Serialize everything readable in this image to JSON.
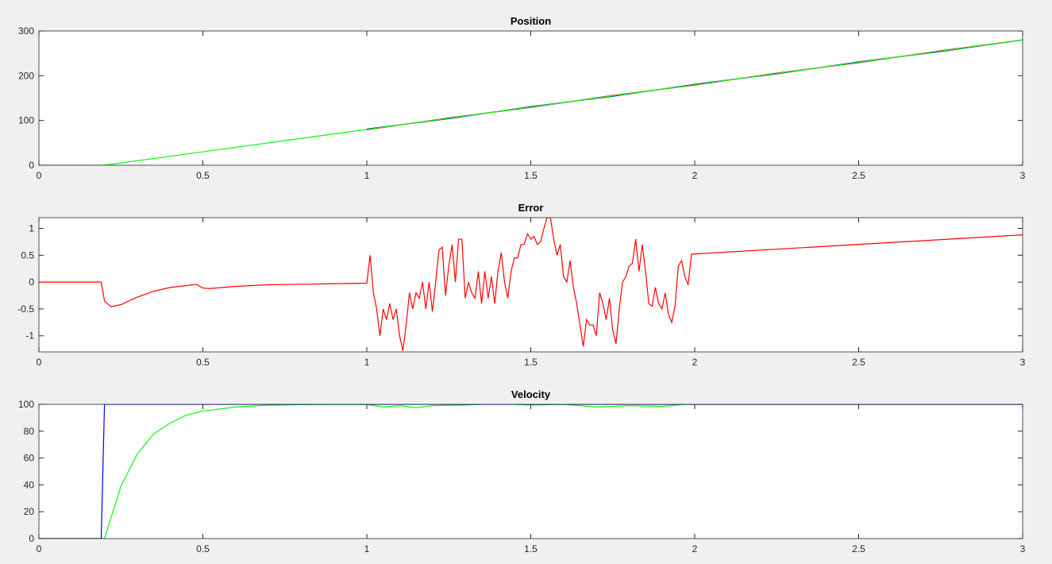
{
  "chart_data": [
    {
      "type": "line",
      "title": "Position",
      "xlim": [
        0,
        3
      ],
      "ylim": [
        0,
        300
      ],
      "xticks": [
        0,
        0.5,
        1,
        1.5,
        2,
        2.5,
        3
      ],
      "yticks": [
        0,
        100,
        200,
        300
      ],
      "series": [
        {
          "color": "#0000ff",
          "x": [
            1,
            1.25,
            1.5,
            1.75,
            2,
            2.25,
            2.5,
            2.75,
            3
          ],
          "values": [
            81,
            104,
            131,
            154,
            181,
            204,
            231,
            254,
            280
          ]
        },
        {
          "color": "#ff0000",
          "x": [
            1,
            1.25,
            1.5,
            1.75,
            2,
            2.25,
            2.5,
            2.75,
            3
          ],
          "values": [
            79,
            106,
            129,
            156,
            179,
            206,
            229,
            256,
            280
          ]
        },
        {
          "color": "#00ff00",
          "x": [
            0,
            0.2,
            3
          ],
          "values": [
            0,
            0,
            280
          ]
        }
      ]
    },
    {
      "type": "line",
      "title": "Error",
      "xlim": [
        0,
        3
      ],
      "ylim": [
        -1.3,
        1.2
      ],
      "xticks": [
        0,
        0.5,
        1,
        1.5,
        2,
        2.5,
        3
      ],
      "yticks": [
        -1,
        -0.5,
        0,
        0.5,
        1
      ],
      "series": [
        {
          "color": "#ff0000",
          "x": [
            0,
            0.19,
            0.2,
            0.22,
            0.25,
            0.3,
            0.35,
            0.4,
            0.47,
            0.48,
            0.5,
            0.52,
            0.6,
            0.7,
            0.8,
            0.9,
            1.0,
            1.01,
            1.02,
            1.03,
            1.04,
            1.05,
            1.06,
            1.07,
            1.08,
            1.09,
            1.1,
            1.11,
            1.12,
            1.13,
            1.14,
            1.15,
            1.16,
            1.17,
            1.18,
            1.19,
            1.2,
            1.21,
            1.22,
            1.23,
            1.24,
            1.25,
            1.26,
            1.27,
            1.28,
            1.29,
            1.3,
            1.31,
            1.32,
            1.33,
            1.34,
            1.35,
            1.36,
            1.37,
            1.38,
            1.39,
            1.4,
            1.41,
            1.42,
            1.43,
            1.44,
            1.45,
            1.46,
            1.47,
            1.48,
            1.49,
            1.5,
            1.51,
            1.52,
            1.53,
            1.54,
            1.55,
            1.56,
            1.57,
            1.58,
            1.59,
            1.6,
            1.61,
            1.62,
            1.63,
            1.64,
            1.65,
            1.66,
            1.67,
            1.68,
            1.69,
            1.7,
            1.71,
            1.72,
            1.73,
            1.74,
            1.75,
            1.76,
            1.77,
            1.78,
            1.79,
            1.8,
            1.81,
            1.82,
            1.83,
            1.84,
            1.85,
            1.86,
            1.87,
            1.88,
            1.89,
            1.9,
            1.91,
            1.92,
            1.93,
            1.94,
            1.95,
            1.96,
            1.97,
            1.98,
            1.99,
            3
          ],
          "values": [
            0,
            0,
            -0.35,
            -0.46,
            -0.42,
            -0.28,
            -0.17,
            -0.1,
            -0.05,
            -0.04,
            -0.11,
            -0.12,
            -0.08,
            -0.05,
            -0.04,
            -0.03,
            -0.02,
            0.5,
            -0.2,
            -0.5,
            -1.0,
            -0.5,
            -0.7,
            -0.4,
            -0.7,
            -0.5,
            -1.0,
            -1.28,
            -0.8,
            -0.2,
            -0.5,
            -0.2,
            -0.3,
            0,
            -0.5,
            0,
            -0.55,
            0,
            0.6,
            0.65,
            -0.25,
            0.3,
            0.7,
            0,
            0.8,
            0.8,
            -0.3,
            0,
            -0.2,
            -0.3,
            0.2,
            -0.4,
            0.2,
            -0.3,
            0.1,
            -0.4,
            0.2,
            0.55,
            0,
            -0.3,
            0.2,
            0.45,
            0.45,
            0.7,
            0.7,
            0.9,
            0.8,
            0.85,
            0.7,
            0.75,
            1.0,
            1.2,
            1.2,
            0.8,
            0.5,
            0.7,
            0.1,
            0,
            0.4,
            -0.1,
            -0.4,
            -0.8,
            -1.2,
            -0.7,
            -0.8,
            -0.8,
            -1.0,
            -0.2,
            -0.4,
            -0.7,
            -0.3,
            -0.9,
            -1.15,
            -0.5,
            0,
            0.1,
            0.3,
            0.35,
            0.8,
            0.2,
            0.7,
            0.2,
            -0.4,
            -0.45,
            -0.1,
            -0.4,
            -0.5,
            -0.2,
            -0.6,
            -0.75,
            -0.45,
            0.3,
            0.4,
            0.1,
            -0.05,
            0.52,
            0.88
          ]
        }
      ]
    },
    {
      "type": "line",
      "title": "Velocity",
      "xlim": [
        0,
        3
      ],
      "ylim": [
        0,
        100
      ],
      "xticks": [
        0,
        0.5,
        1,
        1.5,
        2,
        2.5,
        3
      ],
      "yticks": [
        0,
        20,
        40,
        60,
        80,
        100
      ],
      "series": [
        {
          "color": "#00ff00",
          "x": [
            0,
            0.2,
            0.25,
            0.3,
            0.35,
            0.4,
            0.45,
            0.5,
            0.6,
            0.7,
            0.8,
            0.9,
            1.0,
            1.05,
            1.1,
            1.15,
            1.2,
            1.3,
            1.4,
            1.5,
            1.6,
            1.7,
            1.8,
            1.9,
            1.97,
            3
          ],
          "values": [
            0,
            0,
            39,
            63,
            78,
            86,
            92,
            95,
            98,
            99.3,
            99.8,
            99.9,
            100,
            98,
            99,
            97.5,
            99,
            99.5,
            100.5,
            99.5,
            100,
            98,
            99,
            98.5,
            100,
            100
          ]
        },
        {
          "color": "#0000ff",
          "x": [
            0,
            0.19,
            0.2,
            3
          ],
          "values": [
            0,
            0,
            100,
            100
          ]
        }
      ]
    }
  ]
}
